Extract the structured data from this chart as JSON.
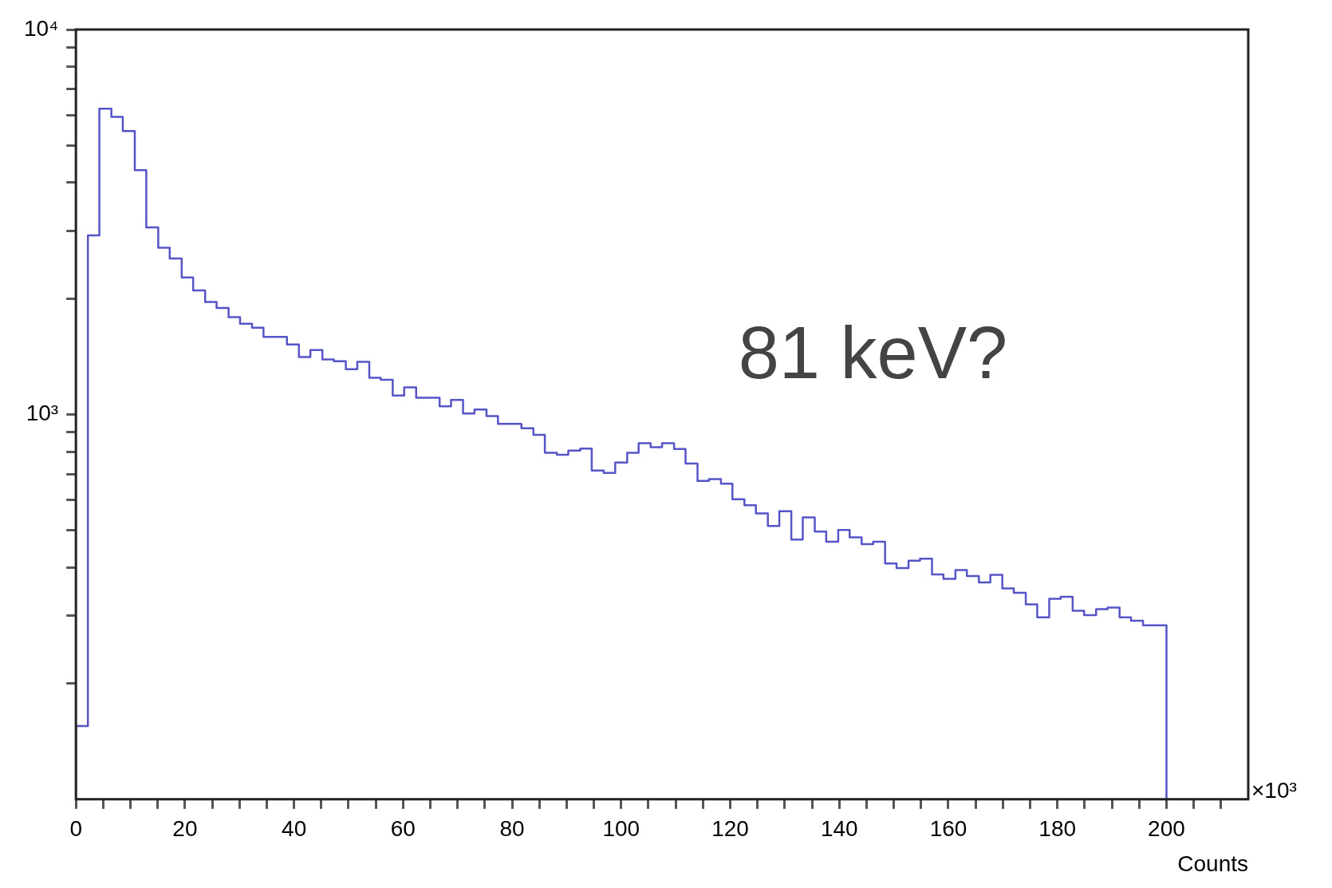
{
  "chart_data": {
    "type": "histogram",
    "xlabel": "Counts",
    "annotations": [
      "81 keV?",
      "×10³"
    ],
    "bins": [
      0,
      2.2,
      4.3,
      6.5,
      8.6,
      10.8,
      12.9,
      15.1,
      17.2,
      19.4,
      21.5,
      23.7,
      25.8,
      28,
      30.1,
      32.3,
      34.4,
      36.6,
      38.7,
      40.9,
      43,
      45.2,
      47.3,
      49.5,
      51.6,
      53.8,
      55.9,
      58.1,
      60.2,
      62.4,
      64.5,
      66.7,
      68.8,
      71,
      73.1,
      75.3,
      77.4,
      79.6,
      81.7,
      83.9,
      86,
      88.2,
      90.3,
      92.5,
      94.6,
      96.8,
      98.9,
      101.1,
      103.2,
      105.4,
      107.5,
      109.7,
      111.8,
      114,
      116.1,
      118.3,
      120.4,
      122.6,
      124.7,
      126.9,
      129,
      131.2,
      133.3,
      135.5,
      137.6,
      139.8,
      141.9,
      144.1,
      146.2,
      148.4,
      150.5,
      152.7,
      154.8,
      157,
      159.1,
      161.3,
      163.4,
      165.6,
      167.7,
      169.9,
      172,
      174.2,
      176.3,
      178.5,
      180.6,
      182.8,
      184.9,
      187.1,
      189.2,
      191.4,
      193.5,
      195.7,
      197.8,
      200
    ],
    "values": [
      155,
      2920,
      6230,
      5930,
      5450,
      4310,
      3060,
      2710,
      2540,
      2270,
      2100,
      1960,
      1890,
      1790,
      1720,
      1680,
      1590,
      1590,
      1520,
      1410,
      1470,
      1390,
      1375,
      1310,
      1370,
      1245,
      1230,
      1120,
      1175,
      1105,
      1105,
      1050,
      1090,
      1005,
      1030,
      990,
      945,
      945,
      920,
      885,
      795,
      785,
      805,
      815,
      715,
      705,
      750,
      795,
      842,
      822,
      842,
      813,
      745,
      672,
      679,
      661,
      602,
      581,
      553,
      513,
      560,
      473,
      540,
      496,
      467,
      501,
      479,
      460,
      467,
      410,
      399,
      417,
      422,
      384,
      374,
      394,
      380,
      366,
      383,
      353,
      344,
      321,
      297,
      332,
      336,
      309,
      301,
      312,
      315,
      297,
      291,
      283,
      283
    ],
    "color": "#5555c8",
    "xlim": [
      0,
      215
    ],
    "xticks": [
      0,
      {
        "value": 5,
        "label": null
      },
      {
        "value": 10,
        "label": null
      },
      {
        "value": 15,
        "label": null
      },
      20,
      {
        "value": 25,
        "label": null
      },
      {
        "value": 30,
        "label": null
      },
      {
        "value": 35,
        "label": null
      },
      40,
      {
        "value": 45,
        "label": null
      },
      {
        "value": 50,
        "label": null
      },
      {
        "value": 55,
        "label": null
      },
      60,
      {
        "value": 65,
        "label": null
      },
      {
        "value": 70,
        "label": null
      },
      {
        "value": 75,
        "label": null
      },
      80,
      {
        "value": 85,
        "label": null
      },
      {
        "value": 90,
        "label": null
      },
      {
        "value": 95,
        "label": null
      },
      100,
      {
        "value": 105,
        "label": null
      },
      {
        "value": 110,
        "label": null
      },
      {
        "value": 115,
        "label": null
      },
      120,
      {
        "value": 125,
        "label": null
      },
      {
        "value": 130,
        "label": null
      },
      {
        "value": 135,
        "label": null
      },
      140,
      {
        "value": 145,
        "label": null
      },
      {
        "value": 150,
        "label": null
      },
      {
        "value": 155,
        "label": null
      },
      160,
      {
        "value": 165,
        "label": null
      },
      {
        "value": 170,
        "label": null
      },
      {
        "value": 175,
        "label": null
      },
      180,
      {
        "value": 185,
        "label": null
      },
      {
        "value": 190,
        "label": null
      },
      {
        "value": 195,
        "label": null
      },
      200,
      {
        "value": 205,
        "label": null
      },
      {
        "value": 210,
        "label": null
      }
    ],
    "ylim": [
      100,
      10000
    ],
    "yticks": [
      {
        "value": 200,
        "label": null
      },
      {
        "value": 300,
        "label": null
      },
      {
        "value": 400,
        "label": null
      },
      {
        "value": 500,
        "label": null
      },
      {
        "value": 600,
        "label": null
      },
      {
        "value": 700,
        "label": null
      },
      {
        "value": 800,
        "label": null
      },
      {
        "value": 900,
        "label": null
      },
      {
        "value": 1000,
        "label": "10³"
      },
      {
        "value": 2000,
        "label": null
      },
      {
        "value": 3000,
        "label": null
      },
      {
        "value": 4000,
        "label": null
      },
      {
        "value": 5000,
        "label": null
      },
      {
        "value": 6000,
        "label": null
      },
      {
        "value": 7000,
        "label": null
      },
      {
        "value": 8000,
        "label": null
      },
      {
        "value": 9000,
        "label": null
      },
      {
        "value": 10000,
        "label": "10⁴"
      }
    ],
    "log": true
  }
}
